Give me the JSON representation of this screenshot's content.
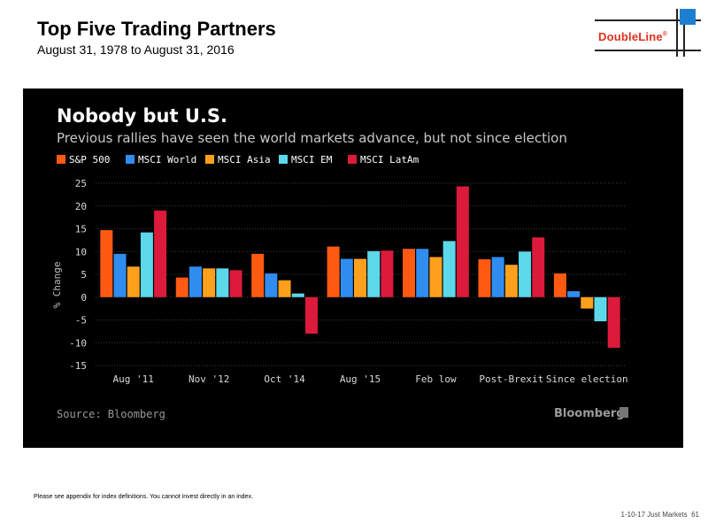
{
  "header": {
    "title": "Top Five Trading Partners",
    "subtitle": "August 31, 1978 to August 31, 2016"
  },
  "logo": {
    "text": "DoubleLine",
    "registered": "®"
  },
  "chart_data": {
    "type": "bar",
    "title": "Nobody but U.S.",
    "subtitle": "Previous rallies have seen the world markets advance, but not since election",
    "xlabel": "",
    "ylabel": "% Change",
    "ylim": [
      -15,
      25
    ],
    "yticks": [
      25,
      20,
      15,
      10,
      5,
      0,
      -5,
      -10,
      -15
    ],
    "categories": [
      "Aug '11",
      "Nov '12",
      "Oct '14",
      "Aug '15",
      "Feb low",
      "Post-Brexit",
      "Since election"
    ],
    "series": [
      {
        "name": "S&P 500",
        "color": "#ff5a12",
        "values": [
          14.7,
          4.3,
          9.5,
          11.1,
          10.6,
          8.3,
          5.2
        ]
      },
      {
        "name": "MSCI World",
        "color": "#2f8df0",
        "values": [
          9.5,
          6.7,
          5.2,
          8.4,
          10.6,
          8.8,
          1.3
        ]
      },
      {
        "name": "MSCI Asia",
        "color": "#ffa01c",
        "values": [
          6.7,
          6.3,
          3.7,
          8.4,
          8.8,
          7.1,
          -2.5
        ]
      },
      {
        "name": "MSCI EM",
        "color": "#5cd8ea",
        "values": [
          14.2,
          6.3,
          0.8,
          10.1,
          12.3,
          10.0,
          -5.3
        ]
      },
      {
        "name": "MSCI LatAm",
        "color": "#dc1a3c",
        "values": [
          19.0,
          5.9,
          -8.0,
          10.2,
          24.3,
          13.1,
          -11.1
        ]
      }
    ],
    "grid": true,
    "legend_position": "top-left",
    "source": "Source: Bloomberg",
    "brand": "Bloomberg"
  },
  "footer": {
    "disclaimer": "Please see appendix for index definitions. You cannot invest directly in an index.",
    "page_label": "1-10-17 Just Markets",
    "page_number": "61"
  }
}
